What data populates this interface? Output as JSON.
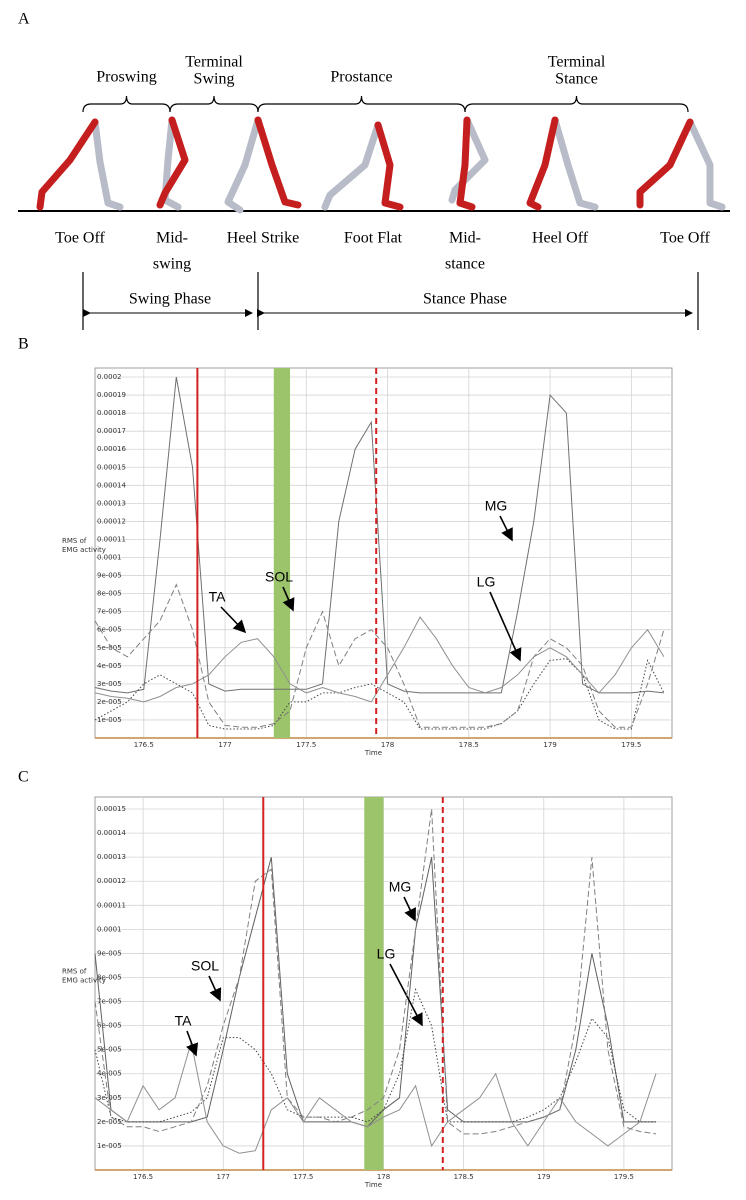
{
  "panels": {
    "a": "A",
    "b": "B",
    "c": "C"
  },
  "gait": {
    "phases": [
      [
        "Proswing"
      ],
      [
        "Terminal",
        "Swing"
      ],
      [
        "Prostance"
      ],
      [
        "Terminal",
        "Stance"
      ]
    ],
    "events": [
      [
        "Toe Off"
      ],
      [
        "Mid-",
        "swing"
      ],
      [
        "Heel Strike"
      ],
      [
        "Foot Flat"
      ],
      [
        "Mid-",
        "stance"
      ],
      [
        "Heel Off"
      ],
      [
        "Toe Off"
      ]
    ],
    "spans": [
      "Swing Phase",
      "Stance Phase"
    ]
  },
  "chart_data": [
    {
      "type": "line",
      "ylabel": [
        "RMS of",
        "EMG activity"
      ],
      "xlabel": "Time",
      "grid": true,
      "xlim": [
        176.2,
        179.75
      ],
      "xticks": [
        176.5,
        177,
        177.5,
        178,
        178.5,
        179,
        179.5
      ],
      "ylim": [
        0,
        0.000205
      ],
      "yticks": [
        {
          "value": 1e-05,
          "label": "1e-005"
        },
        {
          "value": 2e-05,
          "label": "2e-005"
        },
        {
          "value": 3e-05,
          "label": "3e-005"
        },
        {
          "value": 4e-05,
          "label": "4e-005"
        },
        {
          "value": 5e-05,
          "label": "5e-005"
        },
        {
          "value": 6e-05,
          "label": "6e-005"
        },
        {
          "value": 7e-05,
          "label": "7e-005"
        },
        {
          "value": 8e-05,
          "label": "8e-005"
        },
        {
          "value": 9e-05,
          "label": "9e-005"
        },
        0.0001,
        0.00011,
        0.00012,
        0.00013,
        0.00014,
        0.00015,
        0.00016,
        0.00017,
        0.00018,
        0.00019,
        0.0002
      ],
      "events": [
        {
          "x": 176.83,
          "color": "#d42020",
          "style": "solid"
        },
        {
          "x": 177.93,
          "color": "#d42020",
          "style": "dashed"
        }
      ],
      "band": {
        "x": [
          177.3,
          177.4
        ],
        "color": "#9cc46a"
      },
      "x": [
        176.2,
        176.3,
        176.4,
        176.5,
        176.6,
        176.7,
        176.8,
        176.9,
        177,
        177.1,
        177.2,
        177.3,
        177.4,
        177.5,
        177.6,
        177.7,
        177.8,
        177.9,
        178,
        178.1,
        178.2,
        178.3,
        178.4,
        178.5,
        178.6,
        178.7,
        178.8,
        178.9,
        179,
        179.1,
        179.2,
        179.3,
        179.4,
        179.5,
        179.6,
        179.7
      ],
      "series": [
        {
          "name": "MG",
          "color": "#707070",
          "style": "solid",
          "values": [
            2.8e-05,
            2.6e-05,
            2.5e-05,
            2.7e-05,
            0.00011,
            0.0002,
            0.00015,
            3e-05,
            2.6e-05,
            2.7e-05,
            2.7e-05,
            2.7e-05,
            2.7e-05,
            2.7e-05,
            3e-05,
            0.00012,
            0.00016,
            0.000175,
            3e-05,
            2.6e-05,
            2.5e-05,
            2.5e-05,
            2.5e-05,
            2.5e-05,
            2.5e-05,
            2.5e-05,
            7e-05,
            0.00012,
            0.00019,
            0.00018,
            3e-05,
            2.5e-05,
            2.5e-05,
            2.5e-05,
            2.6e-05,
            2.5e-05
          ]
        },
        {
          "name": "LG",
          "color": "#444444",
          "style": "dotted",
          "values": [
            1e-05,
            1.5e-05,
            2e-05,
            3e-05,
            3.5e-05,
            3e-05,
            2.5e-05,
            7e-06,
            5e-06,
            5e-06,
            5e-06,
            7e-06,
            2e-05,
            2e-05,
            2.5e-05,
            2.5e-05,
            2.8e-05,
            3e-05,
            2.5e-05,
            2e-05,
            5e-06,
            5e-06,
            5e-06,
            5e-06,
            5e-06,
            8e-06,
            1.5e-05,
            3e-05,
            4.3e-05,
            4.4e-05,
            3.5e-05,
            1e-05,
            5e-06,
            5e-06,
            4.3e-05,
            2.5e-05
          ]
        },
        {
          "name": "SOL",
          "color": "#808080",
          "style": "dashed",
          "values": [
            6.5e-05,
            5e-05,
            4.5e-05,
            5.5e-05,
            6.5e-05,
            8.5e-05,
            6e-05,
            2e-05,
            7e-06,
            6e-06,
            6e-06,
            8e-06,
            1.5e-05,
            5e-05,
            7e-05,
            4e-05,
            5.5e-05,
            6e-05,
            5e-05,
            3e-05,
            6e-06,
            6e-06,
            6e-06,
            6e-06,
            6e-06,
            8e-06,
            1.5e-05,
            4.5e-05,
            5.5e-05,
            5e-05,
            4e-05,
            1.5e-05,
            6e-06,
            6e-06,
            3e-05,
            6e-05
          ]
        },
        {
          "name": "TA",
          "color": "#909090",
          "style": "solid",
          "values": [
            2.5e-05,
            2.3e-05,
            2.2e-05,
            2e-05,
            2.3e-05,
            2.8e-05,
            3e-05,
            3.5e-05,
            4.5e-05,
            5.3e-05,
            5.5e-05,
            4.5e-05,
            3e-05,
            2.5e-05,
            2.8e-05,
            2.5e-05,
            2.3e-05,
            2e-05,
            3.5e-05,
            5e-05,
            6.7e-05,
            5.5e-05,
            4e-05,
            2.8e-05,
            2.5e-05,
            2.8e-05,
            3.5e-05,
            4.5e-05,
            5e-05,
            4.5e-05,
            3.5e-05,
            2.5e-05,
            3.5e-05,
            5e-05,
            6e-05,
            4.5e-05
          ]
        }
      ]
    },
    {
      "type": "line",
      "ylabel": [
        "RMS of",
        "EMG activity"
      ],
      "xlabel": "Time",
      "grid": true,
      "xlim": [
        176.2,
        179.8
      ],
      "xticks": [
        176.5,
        177,
        177.5,
        178,
        178.5,
        179,
        179.5
      ],
      "ylim": [
        0,
        0.000155
      ],
      "yticks": [
        {
          "value": 1e-05,
          "label": "1e-005"
        },
        {
          "value": 2e-05,
          "label": "2e-005"
        },
        {
          "value": 3e-05,
          "label": "3e-005"
        },
        {
          "value": 4e-05,
          "label": "4e-005"
        },
        {
          "value": 5e-05,
          "label": "5e-005"
        },
        {
          "value": 6e-05,
          "label": "6e-005"
        },
        {
          "value": 7e-05,
          "label": "7e-005"
        },
        {
          "value": 8e-05,
          "label": "8e-005"
        },
        {
          "value": 9e-05,
          "label": "9e-005"
        },
        0.0001,
        0.00011,
        0.00012,
        0.00013,
        0.00014,
        0.00015
      ],
      "events": [
        {
          "x": 177.25,
          "color": "#d42020",
          "style": "solid"
        },
        {
          "x": 178.37,
          "color": "#d42020",
          "style": "dashed"
        }
      ],
      "band": {
        "x": [
          177.88,
          178.0
        ],
        "color": "#9cc46a"
      },
      "x": [
        176.2,
        176.3,
        176.4,
        176.5,
        176.6,
        176.7,
        176.8,
        176.9,
        177,
        177.1,
        177.2,
        177.3,
        177.4,
        177.5,
        177.6,
        177.7,
        177.8,
        177.9,
        178,
        178.1,
        178.2,
        178.3,
        178.4,
        178.5,
        178.6,
        178.7,
        178.8,
        178.9,
        179,
        179.1,
        179.2,
        179.3,
        179.4,
        179.5,
        179.6,
        179.7
      ],
      "series": [
        {
          "name": "MG",
          "color": "#606060",
          "style": "solid",
          "values": [
            9e-05,
            2.5e-05,
            2e-05,
            2e-05,
            2e-05,
            2e-05,
            2e-05,
            2.2e-05,
            5e-05,
            8e-05,
            0.000105,
            0.00013,
            4e-05,
            2e-05,
            2e-05,
            2e-05,
            2e-05,
            1.8e-05,
            2.5e-05,
            3e-05,
            0.0001,
            0.00013,
            2.5e-05,
            2e-05,
            2e-05,
            2e-05,
            2e-05,
            2e-05,
            2.2e-05,
            2.5e-05,
            5e-05,
            9e-05,
            6e-05,
            2e-05,
            2e-05,
            2e-05
          ]
        },
        {
          "name": "LG",
          "color": "#444444",
          "style": "dotted",
          "values": [
            5e-05,
            2.2e-05,
            2e-05,
            2e-05,
            2e-05,
            2.2e-05,
            2.4e-05,
            3e-05,
            5.5e-05,
            5.5e-05,
            5e-05,
            4e-05,
            2.5e-05,
            2.2e-05,
            2.2e-05,
            2.2e-05,
            2.2e-05,
            2e-05,
            2.5e-05,
            4e-05,
            7.5e-05,
            6e-05,
            2e-05,
            2e-05,
            2e-05,
            2e-05,
            2e-05,
            2.2e-05,
            2.5e-05,
            3e-05,
            4.5e-05,
            6.3e-05,
            5.5e-05,
            2.5e-05,
            2e-05,
            2e-05
          ]
        },
        {
          "name": "SOL",
          "color": "#808080",
          "style": "dashed",
          "values": [
            7e-05,
            2.2e-05,
            1.8e-05,
            1.8e-05,
            1.6e-05,
            1.8e-05,
            2e-05,
            3.5e-05,
            6e-05,
            8e-05,
            0.00012,
            0.000125,
            3e-05,
            2.2e-05,
            2.2e-05,
            2e-05,
            2.2e-05,
            2.5e-05,
            3e-05,
            5e-05,
            0.0001,
            0.00015,
            2e-05,
            1.5e-05,
            1.5e-05,
            1.6e-05,
            1.8e-05,
            2e-05,
            2.2e-05,
            2.5e-05,
            6e-05,
            0.00013,
            5e-05,
            1.8e-05,
            1.6e-05,
            1.5e-05
          ]
        },
        {
          "name": "TA",
          "color": "#909090",
          "style": "solid",
          "values": [
            3e-05,
            2.5e-05,
            2e-05,
            3.5e-05,
            2.5e-05,
            3e-05,
            5.3e-05,
            2e-05,
            1e-05,
            7e-06,
            8e-06,
            2.5e-05,
            3e-05,
            2e-05,
            3e-05,
            2.5e-05,
            2e-05,
            1.8e-05,
            2.2e-05,
            2.5e-05,
            3.5e-05,
            1e-05,
            2e-05,
            2.5e-05,
            3e-05,
            4e-05,
            2e-05,
            1e-05,
            2e-05,
            3e-05,
            2e-05,
            1.5e-05,
            1e-05,
            1.5e-05,
            2e-05,
            4e-05
          ]
        }
      ]
    }
  ]
}
